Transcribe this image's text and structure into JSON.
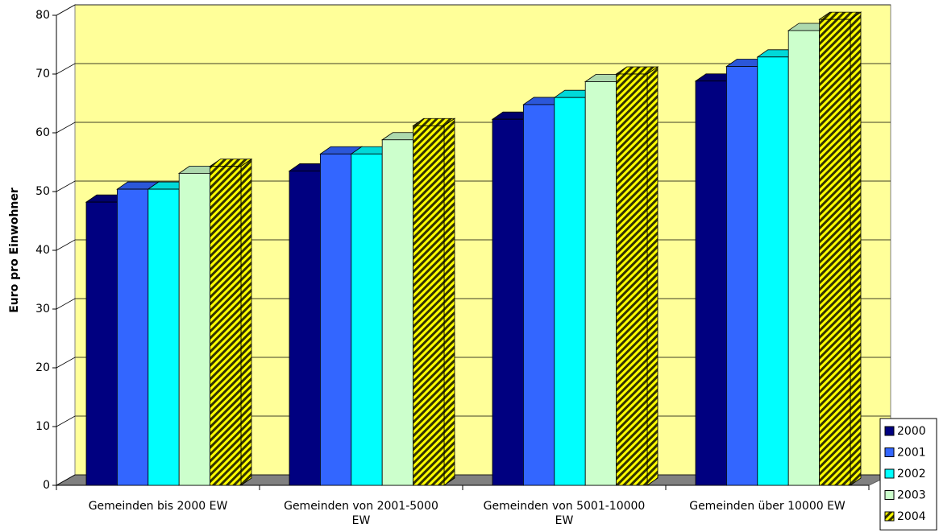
{
  "chart_data": {
    "type": "bar3d",
    "y_label": "Euro pro Einwohner",
    "categories": [
      "Gemeinden bis 2000 EW",
      "Gemeinden von 2001-5000 EW",
      "Gemeinden von 5001-10000 EW",
      "Gemeinden über 10000 EW"
    ],
    "series": [
      {
        "name": "2000",
        "color": "#000080",
        "values": [
          48.2,
          53.5,
          62.3,
          68.8
        ]
      },
      {
        "name": "2001",
        "color": "#3366ff",
        "values": [
          50.4,
          56.4,
          64.8,
          71.3
        ]
      },
      {
        "name": "2002",
        "color": "#00ffff",
        "values": [
          50.4,
          56.4,
          66.0,
          72.9
        ]
      },
      {
        "name": "2003",
        "color": "#ccffcc",
        "values": [
          53.1,
          58.8,
          68.7,
          77.4
        ]
      },
      {
        "name": "2004",
        "color": "#ffff00",
        "pattern": "hatch",
        "values": [
          54.3,
          61.2,
          70.0,
          79.3
        ]
      }
    ],
    "ylim": [
      0,
      80
    ],
    "yticks": [
      0,
      10,
      20,
      30,
      40,
      50,
      60,
      70,
      80
    ],
    "grid": true,
    "legend": "right"
  }
}
